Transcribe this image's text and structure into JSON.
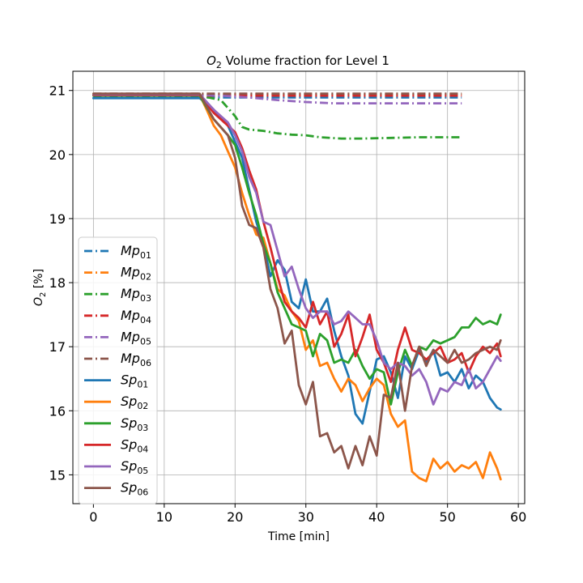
{
  "chart_data": {
    "type": "line",
    "title": "O₂ Volume fraction for Level 1",
    "xlabel": "Time [min]",
    "ylabel": "O₂ [%]",
    "xlim": [
      -2.9,
      60.9
    ],
    "ylim": [
      14.55,
      21.3
    ],
    "xticks": [
      0,
      10,
      20,
      30,
      40,
      50,
      60
    ],
    "yticks": [
      15,
      16,
      17,
      18,
      19,
      20,
      21
    ],
    "grid": true,
    "legend_position": "left",
    "series": [
      {
        "name": "Mp01",
        "label_base": "Mp",
        "label_sub": "01",
        "color": "#1f77b4",
        "style": "dashdot",
        "x": [
          0,
          14,
          20,
          30,
          40,
          52
        ],
        "y": [
          20.89,
          20.89,
          20.89,
          20.89,
          20.89,
          20.89
        ]
      },
      {
        "name": "Mp02",
        "label_base": "Mp",
        "label_sub": "02",
        "color": "#ff7f0e",
        "style": "dashdot",
        "x": [
          0,
          14,
          20,
          30,
          40,
          52
        ],
        "y": [
          20.94,
          20.94,
          20.94,
          20.94,
          20.94,
          20.94
        ]
      },
      {
        "name": "Mp03",
        "label_base": "Mp",
        "label_sub": "03",
        "color": "#2ca02c",
        "style": "dashdot",
        "x": [
          0,
          15,
          18,
          20,
          21,
          22,
          24,
          26,
          28,
          30,
          32,
          35,
          38,
          42,
          46,
          50,
          52
        ],
        "y": [
          20.92,
          20.92,
          20.85,
          20.6,
          20.43,
          20.39,
          20.37,
          20.33,
          20.31,
          20.3,
          20.27,
          20.25,
          20.25,
          20.26,
          20.27,
          20.27,
          20.27
        ]
      },
      {
        "name": "Mp04",
        "label_base": "Mp",
        "label_sub": "04",
        "color": "#d62728",
        "style": "dashdot",
        "x": [
          0,
          14,
          20,
          30,
          40,
          52
        ],
        "y": [
          20.92,
          20.92,
          20.92,
          20.92,
          20.92,
          20.92
        ]
      },
      {
        "name": "Mp05",
        "label_base": "Mp",
        "label_sub": "05",
        "color": "#9467bd",
        "style": "dashdot",
        "x": [
          0,
          15,
          18,
          22,
          26,
          30,
          34,
          40,
          46,
          52
        ],
        "y": [
          20.93,
          20.93,
          20.92,
          20.89,
          20.85,
          20.82,
          20.8,
          20.8,
          20.8,
          20.8
        ]
      },
      {
        "name": "Mp06",
        "label_base": "Mp",
        "label_sub": "06",
        "color": "#8c564b",
        "style": "dashdot",
        "x": [
          0,
          14,
          20,
          30,
          40,
          52
        ],
        "y": [
          20.95,
          20.95,
          20.95,
          20.95,
          20.95,
          20.95
        ]
      },
      {
        "name": "Sp01",
        "label_base": "Sp",
        "label_sub": "01",
        "color": "#1f77b4",
        "style": "solid",
        "x": [
          0,
          15,
          17,
          19,
          21,
          22,
          23,
          24,
          25,
          26,
          27,
          28,
          29,
          30,
          31,
          32,
          33,
          34,
          35,
          36,
          37,
          38,
          39,
          40,
          41,
          42,
          43,
          44,
          45,
          46,
          47,
          48,
          49,
          50,
          51,
          52,
          53,
          54,
          55,
          56,
          57,
          57.5
        ],
        "y": [
          20.88,
          20.88,
          20.7,
          20.45,
          19.95,
          19.45,
          18.95,
          18.6,
          18.1,
          18.35,
          18.2,
          17.7,
          17.6,
          18.05,
          17.55,
          17.55,
          17.75,
          17.25,
          16.85,
          16.55,
          15.95,
          15.8,
          16.3,
          16.8,
          16.85,
          16.6,
          16.2,
          16.85,
          16.65,
          16.95,
          16.75,
          16.95,
          16.55,
          16.6,
          16.45,
          16.65,
          16.35,
          16.55,
          16.45,
          16.2,
          16.05,
          16.02
        ]
      },
      {
        "name": "Sp02",
        "label_base": "Sp",
        "label_sub": "02",
        "color": "#ff7f0e",
        "style": "solid",
        "x": [
          0,
          15,
          16,
          17,
          18,
          19,
          20,
          21,
          22,
          23,
          24,
          25,
          26,
          27,
          28,
          29,
          30,
          31,
          32,
          33,
          34,
          35,
          36,
          37,
          38,
          39,
          40,
          41,
          42,
          43,
          44,
          45,
          46,
          47,
          48,
          49,
          50,
          51,
          52,
          53,
          54,
          55,
          56,
          57,
          57.5
        ],
        "y": [
          20.93,
          20.93,
          20.7,
          20.45,
          20.3,
          20.05,
          19.8,
          19.4,
          19.05,
          18.75,
          18.7,
          18.3,
          17.9,
          17.8,
          17.55,
          17.4,
          16.95,
          17.1,
          16.7,
          16.75,
          16.5,
          16.3,
          16.5,
          16.4,
          16.15,
          16.35,
          16.5,
          16.4,
          15.95,
          15.75,
          15.85,
          15.05,
          14.95,
          14.9,
          15.25,
          15.1,
          15.2,
          15.05,
          15.15,
          15.1,
          15.2,
          14.95,
          15.35,
          15.1,
          14.93
        ]
      },
      {
        "name": "Sp03",
        "label_base": "Sp",
        "label_sub": "03",
        "color": "#2ca02c",
        "style": "solid",
        "x": [
          0,
          15,
          17,
          19,
          20,
          21,
          22,
          23,
          24,
          25,
          26,
          27,
          28,
          29,
          30,
          31,
          32,
          33,
          34,
          35,
          36,
          37,
          38,
          39,
          40,
          41,
          42,
          43,
          44,
          45,
          46,
          47,
          48,
          49,
          50,
          51,
          52,
          53,
          54,
          55,
          56,
          57,
          57.5
        ],
        "y": [
          20.92,
          20.92,
          20.55,
          20.3,
          20.15,
          19.8,
          19.4,
          19.05,
          18.6,
          18.3,
          17.85,
          17.6,
          17.35,
          17.3,
          17.25,
          16.85,
          17.2,
          17.1,
          16.75,
          16.8,
          16.75,
          16.95,
          16.7,
          16.5,
          16.65,
          16.6,
          16.1,
          16.6,
          16.95,
          16.7,
          17.0,
          16.95,
          17.1,
          17.05,
          17.1,
          17.15,
          17.3,
          17.3,
          17.45,
          17.35,
          17.4,
          17.35,
          17.5
        ]
      },
      {
        "name": "Sp04",
        "label_base": "Sp",
        "label_sub": "04",
        "color": "#d62728",
        "style": "solid",
        "x": [
          0,
          15,
          17,
          19,
          20,
          21,
          22,
          23,
          24,
          25,
          26,
          27,
          28,
          29,
          30,
          31,
          32,
          33,
          34,
          35,
          36,
          37,
          38,
          39,
          40,
          41,
          42,
          43,
          44,
          45,
          46,
          47,
          48,
          49,
          50,
          51,
          52,
          53,
          54,
          55,
          56,
          57,
          57.5
        ],
        "y": [
          20.93,
          20.93,
          20.65,
          20.45,
          20.35,
          20.1,
          19.75,
          19.45,
          18.95,
          18.55,
          18.1,
          17.7,
          17.55,
          17.45,
          17.3,
          17.7,
          17.35,
          17.55,
          17.0,
          17.2,
          17.5,
          16.85,
          17.15,
          17.5,
          16.95,
          16.75,
          16.45,
          16.95,
          17.3,
          16.95,
          16.9,
          16.8,
          16.9,
          17.0,
          16.75,
          16.8,
          16.9,
          16.6,
          16.85,
          17.0,
          16.9,
          17.05,
          16.85
        ]
      },
      {
        "name": "Sp05",
        "label_base": "Sp",
        "label_sub": "05",
        "color": "#9467bd",
        "style": "solid",
        "x": [
          0,
          15,
          17,
          19,
          20,
          21,
          22,
          23,
          24,
          25,
          26,
          27,
          28,
          29,
          30,
          31,
          32,
          33,
          34,
          35,
          36,
          37,
          38,
          39,
          40,
          41,
          42,
          43,
          44,
          45,
          46,
          47,
          48,
          49,
          50,
          51,
          52,
          53,
          54,
          55,
          56,
          57,
          57.5
        ],
        "y": [
          20.94,
          20.94,
          20.7,
          20.5,
          20.3,
          20.05,
          19.65,
          19.4,
          18.95,
          18.9,
          18.5,
          18.1,
          18.25,
          17.9,
          17.6,
          17.45,
          17.55,
          17.55,
          17.35,
          17.4,
          17.55,
          17.45,
          17.35,
          17.35,
          17.1,
          16.75,
          16.65,
          16.75,
          16.7,
          16.55,
          16.65,
          16.45,
          16.1,
          16.35,
          16.3,
          16.45,
          16.4,
          16.65,
          16.35,
          16.45,
          16.65,
          16.85,
          16.78
        ]
      },
      {
        "name": "Sp06",
        "label_base": "Sp",
        "label_sub": "06",
        "color": "#8c564b",
        "style": "solid",
        "x": [
          0,
          15,
          17,
          19,
          20,
          21,
          22,
          23,
          24,
          25,
          26,
          27,
          28,
          29,
          30,
          31,
          32,
          33,
          34,
          35,
          36,
          37,
          38,
          39,
          40,
          41,
          42,
          43,
          44,
          45,
          46,
          47,
          48,
          49,
          50,
          51,
          52,
          53,
          54,
          55,
          56,
          57,
          57.5
        ],
        "y": [
          20.95,
          20.95,
          20.55,
          20.3,
          19.95,
          19.2,
          18.9,
          18.85,
          18.55,
          17.9,
          17.6,
          17.05,
          17.25,
          16.4,
          16.1,
          16.45,
          15.6,
          15.65,
          15.35,
          15.45,
          15.1,
          15.45,
          15.15,
          15.6,
          15.3,
          16.25,
          16.2,
          16.75,
          16.0,
          16.7,
          17.0,
          16.7,
          16.95,
          16.85,
          16.75,
          16.95,
          16.75,
          16.8,
          16.9,
          16.95,
          17.0,
          16.95,
          17.1
        ]
      }
    ]
  }
}
